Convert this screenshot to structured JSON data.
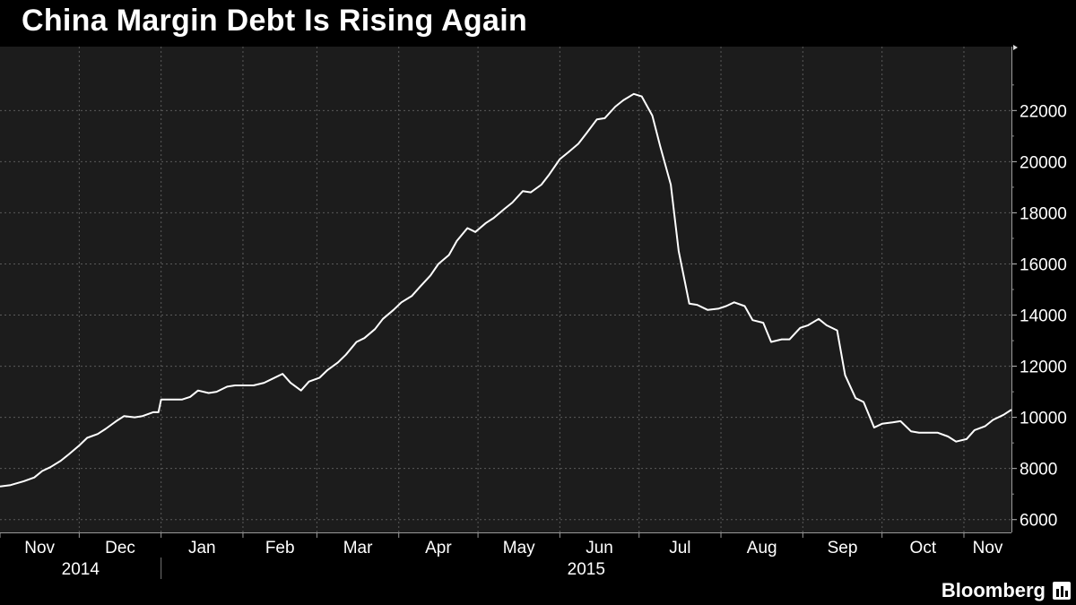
{
  "title": "China Margin Debt Is Rising Again",
  "source": "Bloomberg",
  "logo_icon": "bloomberg-bars-icon",
  "colors": {
    "background": "#000000",
    "plot_background": "#1c1c1c",
    "line": "#ffffff",
    "grid": "#5a5a5a",
    "text": "#ffffff"
  },
  "chart_data": {
    "type": "line",
    "title": "China Margin Debt Is Rising Again",
    "xlabel": "",
    "ylabel": "",
    "x_axis": "time",
    "xlim": [
      "2014-11-01",
      "2015-11-19"
    ],
    "ylim": [
      5500,
      24500
    ],
    "y_ticks": [
      6000,
      8000,
      10000,
      12000,
      14000,
      16000,
      18000,
      20000,
      22000
    ],
    "y_axis_position": "right",
    "grid": true,
    "legend": "none",
    "month_ticks": [
      {
        "label": "Nov",
        "date": "2014-11-01"
      },
      {
        "label": "Dec",
        "date": "2014-12-01"
      },
      {
        "label": "Jan",
        "date": "2015-01-01"
      },
      {
        "label": "Feb",
        "date": "2015-02-01"
      },
      {
        "label": "Mar",
        "date": "2015-03-01"
      },
      {
        "label": "Apr",
        "date": "2015-04-01"
      },
      {
        "label": "May",
        "date": "2015-05-01"
      },
      {
        "label": "Jun",
        "date": "2015-06-01"
      },
      {
        "label": "Jul",
        "date": "2015-07-01"
      },
      {
        "label": "Aug",
        "date": "2015-08-01"
      },
      {
        "label": "Sep",
        "date": "2015-09-01"
      },
      {
        "label": "Oct",
        "date": "2015-10-01"
      },
      {
        "label": "Nov",
        "date": "2015-11-01"
      }
    ],
    "year_labels": [
      {
        "label": "2014",
        "from": "2014-11-01",
        "to": "2015-01-01"
      },
      {
        "label": "2015",
        "from": "2015-01-01",
        "to": "2015-11-19"
      }
    ],
    "series": [
      {
        "values": [
          [
            "2014-11-01",
            7300
          ],
          [
            "2014-11-05",
            7350
          ],
          [
            "2014-11-10",
            7500
          ],
          [
            "2014-11-14",
            7650
          ],
          [
            "2014-11-17",
            7900
          ],
          [
            "2014-11-20",
            8050
          ],
          [
            "2014-11-24",
            8300
          ],
          [
            "2014-11-27",
            8550
          ],
          [
            "2014-12-01",
            8900
          ],
          [
            "2014-12-04",
            9200
          ],
          [
            "2014-12-08",
            9350
          ],
          [
            "2014-12-11",
            9550
          ],
          [
            "2014-12-15",
            9850
          ],
          [
            "2014-12-18",
            10050
          ],
          [
            "2014-12-22",
            10000
          ],
          [
            "2014-12-25",
            10050
          ],
          [
            "2014-12-29",
            10200
          ],
          [
            "2014-12-31",
            10200
          ],
          [
            "2015-01-01",
            10700
          ],
          [
            "2015-01-06",
            10700
          ],
          [
            "2015-01-09",
            10700
          ],
          [
            "2015-01-12",
            10800
          ],
          [
            "2015-01-15",
            11050
          ],
          [
            "2015-01-19",
            10950
          ],
          [
            "2015-01-22",
            11000
          ],
          [
            "2015-01-26",
            11200
          ],
          [
            "2015-01-29",
            11250
          ],
          [
            "2015-02-02",
            11250
          ],
          [
            "2015-02-05",
            11250
          ],
          [
            "2015-02-09",
            11350
          ],
          [
            "2015-02-12",
            11500
          ],
          [
            "2015-02-16",
            11700
          ],
          [
            "2015-02-19",
            11350
          ],
          [
            "2015-02-23",
            11050
          ],
          [
            "2015-02-26",
            11400
          ],
          [
            "2015-03-02",
            11550
          ],
          [
            "2015-03-05",
            11850
          ],
          [
            "2015-03-09",
            12150
          ],
          [
            "2015-03-12",
            12450
          ],
          [
            "2015-03-16",
            12950
          ],
          [
            "2015-03-19",
            13100
          ],
          [
            "2015-03-23",
            13450
          ],
          [
            "2015-03-26",
            13850
          ],
          [
            "2015-03-30",
            14200
          ],
          [
            "2015-04-02",
            14500
          ],
          [
            "2015-04-06",
            14750
          ],
          [
            "2015-04-09",
            15100
          ],
          [
            "2015-04-13",
            15550
          ],
          [
            "2015-04-16",
            16000
          ],
          [
            "2015-04-20",
            16350
          ],
          [
            "2015-04-23",
            16900
          ],
          [
            "2015-04-27",
            17400
          ],
          [
            "2015-04-30",
            17250
          ],
          [
            "2015-05-04",
            17600
          ],
          [
            "2015-05-07",
            17800
          ],
          [
            "2015-05-11",
            18150
          ],
          [
            "2015-05-14",
            18400
          ],
          [
            "2015-05-18",
            18850
          ],
          [
            "2015-05-21",
            18800
          ],
          [
            "2015-05-25",
            19100
          ],
          [
            "2015-05-28",
            19500
          ],
          [
            "2015-06-01",
            20100
          ],
          [
            "2015-06-04",
            20350
          ],
          [
            "2015-06-08",
            20700
          ],
          [
            "2015-06-11",
            21100
          ],
          [
            "2015-06-15",
            21650
          ],
          [
            "2015-06-18",
            21700
          ],
          [
            "2015-06-22",
            22150
          ],
          [
            "2015-06-25",
            22400
          ],
          [
            "2015-06-29",
            22650
          ],
          [
            "2015-07-02",
            22550
          ],
          [
            "2015-07-06",
            21800
          ],
          [
            "2015-07-09",
            20600
          ],
          [
            "2015-07-13",
            19100
          ],
          [
            "2015-07-16",
            16500
          ],
          [
            "2015-07-20",
            14450
          ],
          [
            "2015-07-23",
            14400
          ],
          [
            "2015-07-27",
            14200
          ],
          [
            "2015-07-31",
            14250
          ],
          [
            "2015-08-03",
            14350
          ],
          [
            "2015-08-06",
            14500
          ],
          [
            "2015-08-10",
            14350
          ],
          [
            "2015-08-13",
            13800
          ],
          [
            "2015-08-17",
            13700
          ],
          [
            "2015-08-20",
            12950
          ],
          [
            "2015-08-24",
            13050
          ],
          [
            "2015-08-27",
            13050
          ],
          [
            "2015-08-31",
            13500
          ],
          [
            "2015-09-03",
            13600
          ],
          [
            "2015-09-07",
            13850
          ],
          [
            "2015-09-10",
            13600
          ],
          [
            "2015-09-14",
            13400
          ],
          [
            "2015-09-17",
            11650
          ],
          [
            "2015-09-21",
            10750
          ],
          [
            "2015-09-24",
            10600
          ],
          [
            "2015-09-28",
            9600
          ],
          [
            "2015-10-01",
            9750
          ],
          [
            "2015-10-05",
            9800
          ],
          [
            "2015-10-08",
            9850
          ],
          [
            "2015-10-12",
            9450
          ],
          [
            "2015-10-15",
            9400
          ],
          [
            "2015-10-19",
            9400
          ],
          [
            "2015-10-22",
            9400
          ],
          [
            "2015-10-26",
            9250
          ],
          [
            "2015-10-29",
            9050
          ],
          [
            "2015-11-02",
            9150
          ],
          [
            "2015-11-05",
            9500
          ],
          [
            "2015-11-09",
            9650
          ],
          [
            "2015-11-12",
            9900
          ],
          [
            "2015-11-16",
            10100
          ],
          [
            "2015-11-19",
            10300
          ]
        ]
      }
    ]
  }
}
